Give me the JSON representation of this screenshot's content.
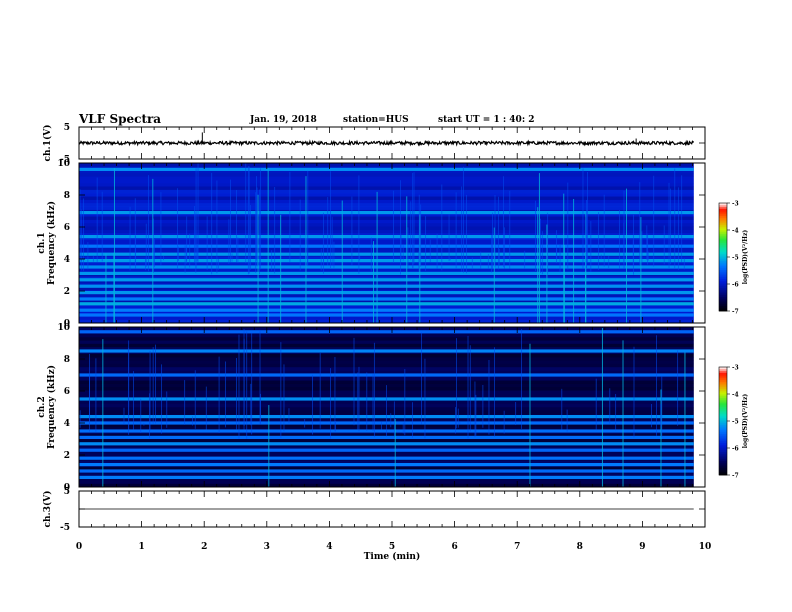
{
  "header": {
    "title": "VLF Spectra",
    "date": "Jan. 19, 2018",
    "station": "station=HUS",
    "start_ut": "start UT =  1 : 40: 2"
  },
  "chart_data": [
    {
      "type": "line",
      "panel": "waveform-ch1",
      "ylabel": "ch.1(V)",
      "ylim": [
        -5,
        5
      ],
      "yticks": [
        "5",
        "-5"
      ],
      "xlim": [
        0,
        10
      ],
      "baseline_v": 0,
      "noise_v": 0.5,
      "data_end_min": 9.82,
      "spikes": [
        {
          "x": 1.97,
          "y": 3.3
        },
        {
          "x": 8.9,
          "y": 1.4
        }
      ]
    },
    {
      "type": "heatmap",
      "panel": "spectrogram-ch1",
      "ylabel_channel": "ch.1",
      "ylabel": "Frequency (kHz)",
      "ylim": [
        0,
        10
      ],
      "yticks": [
        "0",
        "2",
        "4",
        "6",
        "8",
        "10"
      ],
      "xlim": [
        0,
        10
      ],
      "data_end_min": 9.82,
      "colorbar": {
        "label": "log(PSD)(V²/Hz)",
        "range": [
          -7,
          -3
        ],
        "ticks": [
          "-3",
          "-4",
          "-5",
          "-6",
          "-7"
        ]
      },
      "background_level": -6.0,
      "emission_bands_khz": [
        0.5,
        0.8,
        1.2,
        1.5,
        1.9,
        2.3,
        2.7,
        3.1,
        3.5,
        3.9,
        4.3,
        4.8,
        5.4,
        6.9,
        9.6
      ],
      "band_level": -5.2,
      "spike_density": 1.0
    },
    {
      "type": "heatmap",
      "panel": "spectrogram-ch2",
      "ylabel_channel": "ch.2",
      "ylabel": "Frequency (kHz)",
      "ylim": [
        0,
        10
      ],
      "yticks": [
        "0",
        "2",
        "4",
        "6",
        "8",
        "10"
      ],
      "xlim": [
        0,
        10
      ],
      "data_end_min": 9.82,
      "colorbar": {
        "label": "log(PSD)(V²/Hz)",
        "range": [
          -7,
          -3
        ],
        "ticks": [
          "-3",
          "-4",
          "-5",
          "-6",
          "-7"
        ]
      },
      "background_level": -6.6,
      "emission_bands_khz": [
        0.6,
        1.0,
        1.4,
        1.8,
        2.3,
        2.7,
        3.1,
        3.5,
        4.0,
        4.4,
        5.5,
        7.0,
        8.5,
        9.7
      ],
      "band_level": -5.3,
      "spike_density": 0.55
    },
    {
      "type": "line",
      "panel": "waveform-ch3",
      "ylabel": "ch.3(V)",
      "ylim": [
        -5,
        5
      ],
      "yticks": [
        "5",
        "-5"
      ],
      "xlim": [
        0,
        10
      ],
      "baseline_v": 0,
      "noise_v": 0.0,
      "data_end_min": 9.82
    }
  ],
  "xaxis": {
    "label": "Time (min)",
    "ticks": [
      "0",
      "1",
      "2",
      "3",
      "4",
      "5",
      "6",
      "7",
      "8",
      "9",
      "10"
    ]
  }
}
